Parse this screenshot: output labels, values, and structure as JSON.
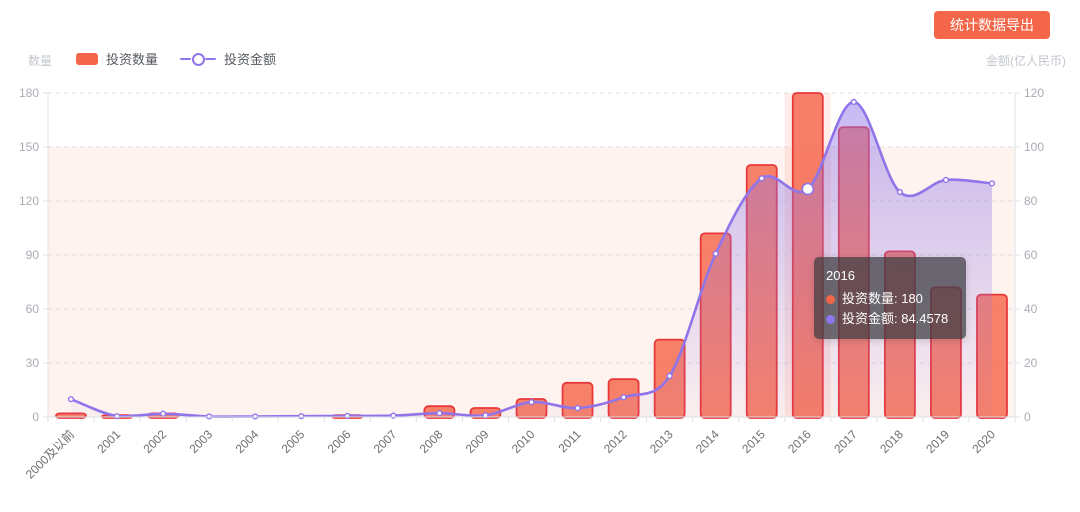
{
  "toolbar": {
    "export_button": "统计数据导出"
  },
  "axes": {
    "left_name": "数量",
    "right_name": "金额(亿人民币)"
  },
  "legend": {
    "items": [
      {
        "label": "投资数量",
        "type": "bar"
      },
      {
        "label": "投资金额",
        "type": "line"
      }
    ]
  },
  "tooltip": {
    "title": "2016",
    "rows": [
      {
        "label": "投资数量",
        "value": "180",
        "text": "投资数量: 180",
        "color": "#f4664a"
      },
      {
        "label": "投资金额",
        "value": "84.4578",
        "text": "投资金额: 84.4578",
        "color": "#8d75ec"
      }
    ]
  },
  "colors": {
    "accent": "#f4664a",
    "bar_fill": "rgba(245,95,68,0.78)",
    "bar_border": "#e9383c",
    "line": "#8f74ea",
    "area_top": "rgba(143,116,234,0.50)",
    "area_bottom": "rgba(143,116,234,0.04)",
    "mark_area": "rgba(247,140,90,0.10)",
    "hover_band": "rgba(244,106,74,0.12)",
    "grid": "#dcdcdc",
    "axis_line": "#dde0e4",
    "y_label": "#a9adb4",
    "x_label": "#6e6e6e"
  },
  "chart_data": {
    "type": "bar+line",
    "title": "",
    "categories": [
      "2000及以前",
      "2001",
      "2002",
      "2003",
      "2004",
      "2005",
      "2006",
      "2007",
      "2008",
      "2009",
      "2010",
      "2011",
      "2012",
      "2013",
      "2014",
      "2015",
      "2016",
      "2017",
      "2018",
      "2019",
      "2020"
    ],
    "series": [
      {
        "name": "投资数量",
        "type": "bar",
        "axis": "left",
        "values": [
          2,
          1,
          2,
          0,
          0,
          0,
          1,
          0,
          6,
          5,
          10,
          19,
          21,
          43,
          102,
          140,
          180,
          161,
          92,
          72,
          68
        ]
      },
      {
        "name": "投资金额",
        "type": "line",
        "axis": "right",
        "smooth": true,
        "area": true,
        "values": [
          6.6,
          0.3,
          1.2,
          0.2,
          0.2,
          0.3,
          0.4,
          0.5,
          1.4,
          0.6,
          5.5,
          3.3,
          7.3,
          15.2,
          60.5,
          88.4,
          84.4578,
          116.7,
          83.3,
          87.8,
          86.5
        ]
      }
    ],
    "left_axis": {
      "name": "数量",
      "range": [
        0,
        180
      ],
      "ticks": [
        0,
        30,
        60,
        90,
        120,
        150,
        180
      ]
    },
    "right_axis": {
      "name": "金额(亿人民币)",
      "range": [
        0,
        120
      ],
      "ticks": [
        0,
        20,
        40,
        60,
        80,
        100,
        120
      ]
    },
    "grid": true,
    "legend_position": "top-left",
    "highlighted_category": "2016",
    "mark_area_right_axis": [
      0,
      100
    ]
  }
}
